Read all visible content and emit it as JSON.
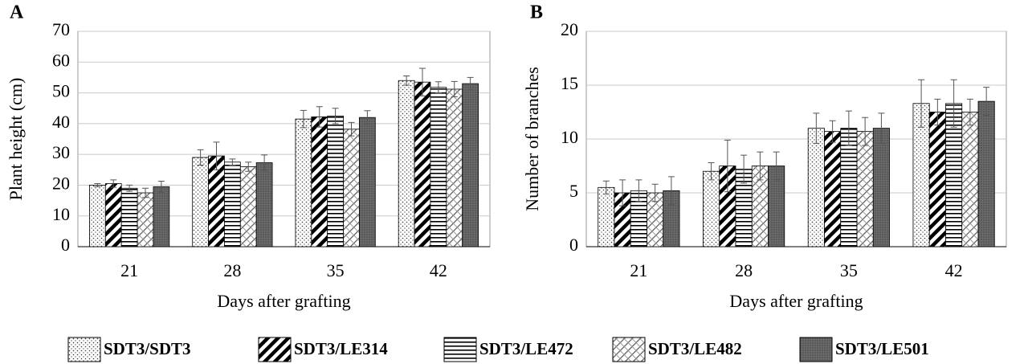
{
  "chart_data": [
    {
      "type": "bar",
      "label": "A",
      "xlabel": "Days after grafting",
      "ylabel": "Plant height (cm)",
      "categories": [
        "21",
        "28",
        "35",
        "42"
      ],
      "ylim": [
        0,
        70
      ],
      "yticks": [
        0,
        10,
        20,
        30,
        40,
        50,
        60,
        70
      ],
      "grid": true,
      "series": [
        {
          "name": "SDT3/SDT3",
          "pattern": "dots",
          "values": [
            20,
            29,
            41.5,
            54
          ],
          "errors": [
            0.5,
            2.5,
            2.8,
            1.5
          ]
        },
        {
          "name": "SDT3/LE314",
          "pattern": "diag",
          "values": [
            20.5,
            29.5,
            42.2,
            53.5
          ],
          "errors": [
            1.2,
            4.5,
            3.3,
            4.5
          ]
        },
        {
          "name": "SDT3/LE472",
          "pattern": "horiz",
          "values": [
            19,
            27.5,
            42.5,
            51.8
          ],
          "errors": [
            1,
            1,
            2.5,
            1.8
          ]
        },
        {
          "name": "SDT3/LE482",
          "pattern": "cross",
          "values": [
            17.5,
            26,
            38.2,
            51.2
          ],
          "errors": [
            1.5,
            1.5,
            2.2,
            2.5
          ]
        },
        {
          "name": "SDT3/LE501",
          "pattern": "dark",
          "values": [
            19.5,
            27.3,
            42,
            53
          ],
          "errors": [
            1.8,
            2.5,
            2.2,
            2
          ]
        }
      ]
    },
    {
      "type": "bar",
      "label": "B",
      "xlabel": "Days after grafting",
      "ylabel": "Number of branches",
      "categories": [
        "21",
        "28",
        "35",
        "42"
      ],
      "ylim": [
        0,
        20
      ],
      "yticks": [
        0,
        5,
        10,
        15,
        20
      ],
      "grid": true,
      "series": [
        {
          "pattern": "dots",
          "values": [
            5.5,
            7,
            11,
            13.3
          ],
          "errors": [
            0.6,
            0.8,
            1.4,
            2.2
          ]
        },
        {
          "pattern": "diag",
          "values": [
            5,
            7.5,
            10.7,
            12.5
          ],
          "errors": [
            1.2,
            2.4,
            1,
            1.2
          ]
        },
        {
          "pattern": "horiz",
          "values": [
            5.2,
            7.2,
            11,
            13.3
          ],
          "errors": [
            1,
            1.3,
            1.6,
            2.2
          ]
        },
        {
          "pattern": "cross",
          "values": [
            5,
            7.5,
            10.7,
            12.5
          ],
          "errors": [
            0.8,
            1.3,
            1.3,
            1.2
          ]
        },
        {
          "pattern": "dark",
          "values": [
            5.2,
            7.5,
            11,
            13.5
          ],
          "errors": [
            1.3,
            1.3,
            1.4,
            1.3
          ]
        }
      ]
    }
  ]
}
